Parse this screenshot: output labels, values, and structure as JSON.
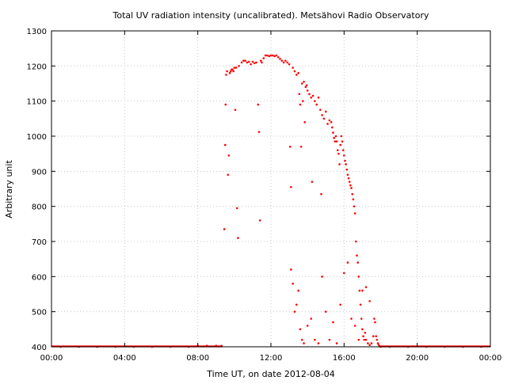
{
  "chart_data": {
    "type": "scatter",
    "title": "Total UV radiation intensity (uncalibrated). Metsähovi Radio Observatory",
    "xlabel": "Time UT, on date 2012-08-04",
    "ylabel": "Arbitrary unit",
    "xlim": [
      0,
      24
    ],
    "ylim": [
      400,
      1300
    ],
    "x_ticks": [
      0,
      4,
      8,
      12,
      16,
      20,
      24
    ],
    "x_tick_labels": [
      "00:00",
      "04:00",
      "08:00",
      "12:00",
      "16:00",
      "20:00",
      "00:00"
    ],
    "y_ticks": [
      400,
      500,
      600,
      700,
      800,
      900,
      1000,
      1100,
      1200,
      1300
    ],
    "y_tick_labels": [
      "400",
      "500",
      "600",
      "700",
      "800",
      "900",
      "1000",
      "1100",
      "1200",
      "1300"
    ],
    "grid": true,
    "marker_color": "#ff0000",
    "series": [
      {
        "points": [
          [
            0.5,
            400
          ],
          [
            1.5,
            400
          ],
          [
            2.5,
            400
          ],
          [
            3.5,
            400
          ],
          [
            4.5,
            400
          ],
          [
            5.5,
            400
          ],
          [
            6.5,
            400
          ],
          [
            7.5,
            400
          ],
          [
            8.0,
            403
          ],
          [
            8.5,
            403
          ],
          [
            9.0,
            403
          ],
          [
            9.3,
            403
          ],
          [
            9.45,
            735
          ],
          [
            9.5,
            975
          ],
          [
            9.52,
            1090
          ],
          [
            9.55,
            1175
          ],
          [
            9.6,
            1185
          ],
          [
            9.65,
            890
          ],
          [
            9.7,
            945
          ],
          [
            9.75,
            1180
          ],
          [
            9.8,
            1185
          ],
          [
            9.85,
            1190
          ],
          [
            9.9,
            1190
          ],
          [
            9.95,
            1185
          ],
          [
            10.0,
            1195
          ],
          [
            10.05,
            1075
          ],
          [
            10.1,
            1195
          ],
          [
            10.15,
            795
          ],
          [
            10.2,
            710
          ],
          [
            10.25,
            1200
          ],
          [
            10.4,
            1210
          ],
          [
            10.5,
            1215
          ],
          [
            10.6,
            1215
          ],
          [
            10.7,
            1210
          ],
          [
            10.8,
            1212
          ],
          [
            10.9,
            1205
          ],
          [
            11.0,
            1212
          ],
          [
            11.1,
            1208
          ],
          [
            11.2,
            1210
          ],
          [
            11.3,
            1090
          ],
          [
            11.35,
            1012
          ],
          [
            11.4,
            760
          ],
          [
            11.45,
            1215
          ],
          [
            11.5,
            1210
          ],
          [
            11.6,
            1222
          ],
          [
            11.7,
            1230
          ],
          [
            11.8,
            1230
          ],
          [
            11.9,
            1228
          ],
          [
            12.0,
            1230
          ],
          [
            12.1,
            1230
          ],
          [
            12.2,
            1228
          ],
          [
            12.3,
            1230
          ],
          [
            12.4,
            1225
          ],
          [
            12.5,
            1220
          ],
          [
            12.6,
            1215
          ],
          [
            12.7,
            1210
          ],
          [
            12.8,
            1215
          ],
          [
            12.9,
            1210
          ],
          [
            13.0,
            1205
          ],
          [
            13.05,
            970
          ],
          [
            13.1,
            855
          ],
          [
            13.2,
            1195
          ],
          [
            13.3,
            1185
          ],
          [
            13.4,
            1175
          ],
          [
            13.5,
            1180
          ],
          [
            13.55,
            1120
          ],
          [
            13.6,
            1090
          ],
          [
            13.65,
            970
          ],
          [
            13.7,
            1150
          ],
          [
            13.75,
            1100
          ],
          [
            13.8,
            1155
          ],
          [
            13.85,
            1040
          ],
          [
            13.9,
            1140
          ],
          [
            13.95,
            1145
          ],
          [
            14.0,
            1130
          ],
          [
            14.1,
            1120
          ],
          [
            14.2,
            1110
          ],
          [
            14.25,
            870
          ],
          [
            14.3,
            1115
          ],
          [
            14.4,
            1100
          ],
          [
            14.5,
            1090
          ],
          [
            14.6,
            1110
          ],
          [
            14.7,
            1075
          ],
          [
            14.75,
            835
          ],
          [
            14.8,
            1060
          ],
          [
            14.9,
            1050
          ],
          [
            15.0,
            1070
          ],
          [
            15.1,
            1035
          ],
          [
            15.2,
            1045
          ],
          [
            15.3,
            1040
          ],
          [
            15.35,
            1025
          ],
          [
            15.4,
            1010
          ],
          [
            15.45,
            995
          ],
          [
            15.5,
            985
          ],
          [
            15.55,
            1000
          ],
          [
            15.6,
            985
          ],
          [
            15.65,
            960
          ],
          [
            15.7,
            950
          ],
          [
            15.75,
            920
          ],
          [
            15.8,
            975
          ],
          [
            15.85,
            1000
          ],
          [
            15.9,
            985
          ],
          [
            15.95,
            960
          ],
          [
            16.0,
            945
          ],
          [
            16.05,
            930
          ],
          [
            16.1,
            920
          ],
          [
            16.15,
            905
          ],
          [
            16.2,
            890
          ],
          [
            16.25,
            880
          ],
          [
            16.3,
            870
          ],
          [
            16.35,
            860
          ],
          [
            16.4,
            852
          ],
          [
            16.45,
            835
          ],
          [
            16.5,
            820
          ],
          [
            16.55,
            800
          ],
          [
            16.6,
            780
          ],
          [
            16.65,
            700
          ],
          [
            16.7,
            660
          ],
          [
            16.75,
            640
          ],
          [
            16.8,
            600
          ],
          [
            16.85,
            560
          ],
          [
            16.9,
            520
          ],
          [
            16.95,
            480
          ],
          [
            17.0,
            450
          ],
          [
            17.05,
            430
          ],
          [
            17.1,
            420
          ],
          [
            17.15,
            440
          ],
          [
            17.2,
            420
          ],
          [
            17.3,
            410
          ],
          [
            17.4,
            405
          ],
          [
            17.5,
            410
          ],
          [
            17.6,
            430
          ],
          [
            17.65,
            480
          ],
          [
            17.7,
            470
          ],
          [
            17.75,
            430
          ],
          [
            17.8,
            420
          ],
          [
            17.85,
            410
          ],
          [
            17.9,
            405
          ],
          [
            18.0,
            400
          ],
          [
            13.1,
            620
          ],
          [
            13.2,
            580
          ],
          [
            13.3,
            500
          ],
          [
            13.4,
            520
          ],
          [
            13.5,
            560
          ],
          [
            13.6,
            450
          ],
          [
            13.7,
            420
          ],
          [
            13.8,
            410
          ],
          [
            14.0,
            460
          ],
          [
            14.2,
            480
          ],
          [
            14.4,
            420
          ],
          [
            14.6,
            410
          ],
          [
            14.8,
            600
          ],
          [
            15.0,
            500
          ],
          [
            15.2,
            420
          ],
          [
            15.4,
            470
          ],
          [
            15.6,
            410
          ],
          [
            15.8,
            520
          ],
          [
            16.0,
            610
          ],
          [
            16.2,
            640
          ],
          [
            16.4,
            480
          ],
          [
            16.6,
            460
          ],
          [
            16.8,
            420
          ],
          [
            17.0,
            560
          ],
          [
            17.2,
            570
          ],
          [
            17.4,
            530
          ],
          [
            18.5,
            400
          ],
          [
            19.5,
            400
          ],
          [
            20.5,
            400
          ],
          [
            21.5,
            400
          ],
          [
            22.5,
            400
          ],
          [
            23.5,
            400
          ]
        ]
      }
    ]
  }
}
